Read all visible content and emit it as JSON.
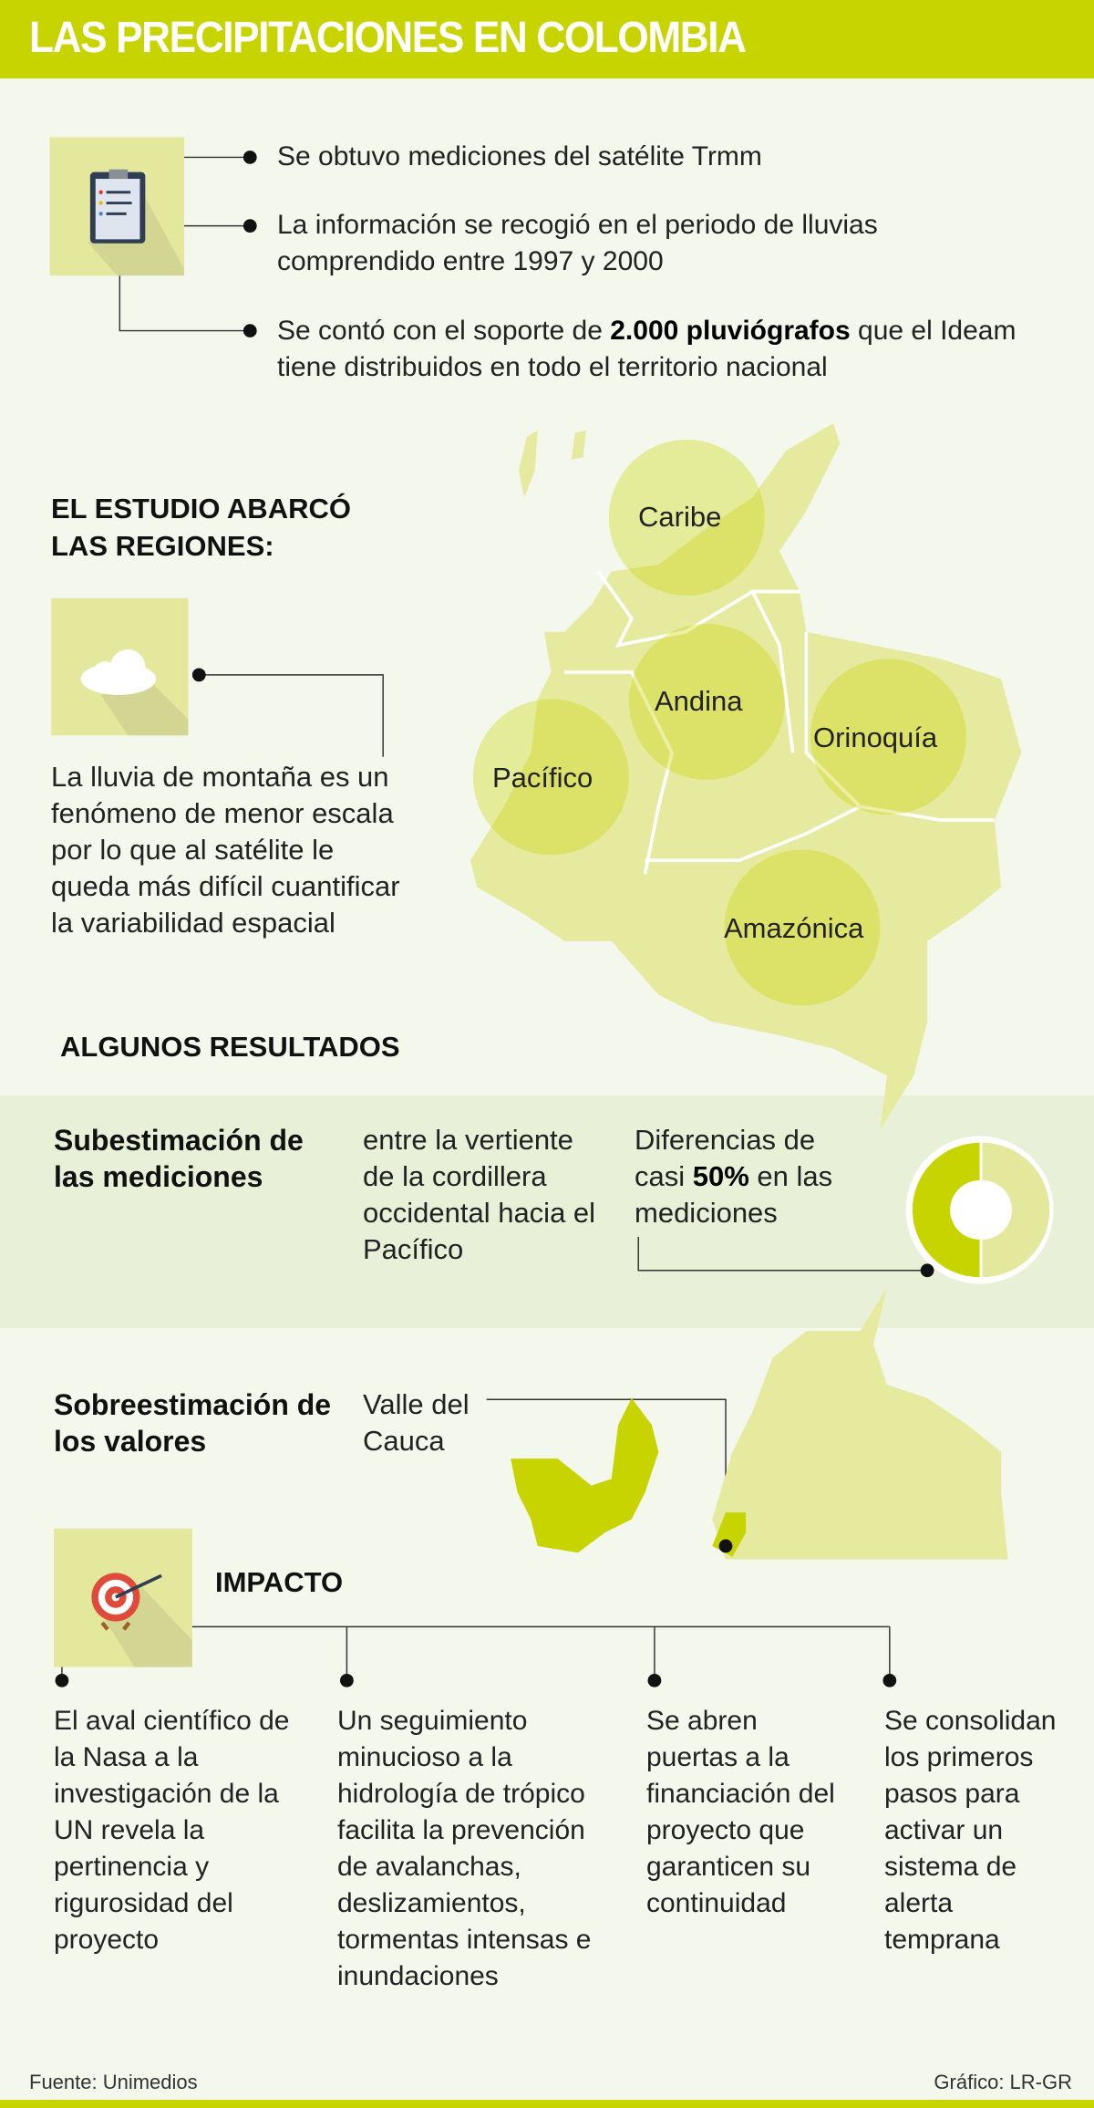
{
  "header": {
    "title": "LAS PRECIPITACIONES EN COLOMBIA"
  },
  "intro": {
    "items": [
      {
        "text": "Se obtuvo mediciones del satélite Trmm"
      },
      {
        "text": "La información se recogió en el periodo de lluvias comprendido entre 1997 y 2000"
      },
      {
        "pre": "Se contó con el soporte de ",
        "bold": "2.000 pluviógrafos",
        "post": " que el Ideam tiene distribuidos en todo el territorio nacional"
      }
    ],
    "icon": "clipboard-icon"
  },
  "study": {
    "heading_line1": "EL ESTUDIO ABARCÓ",
    "heading_line2": "LAS REGIONES:",
    "icon": "cloud-icon",
    "note": "La lluvia de montaña es un fenómeno de menor escala por lo que al satélite le queda más difícil cuantificar la variabilidad espacial",
    "regions": [
      "Caribe",
      "Andina",
      "Pacífico",
      "Orinoquía",
      "Amazónica"
    ]
  },
  "results": {
    "heading": "ALGUNOS RESULTADOS",
    "under": {
      "label": "Subestimación de las mediciones",
      "detail": "entre la vertiente de la cordillera occidental hacia el Pacífico",
      "diff_pre": "Diferencias de casi ",
      "diff_bold": "50%",
      "diff_post": " en las mediciones",
      "donut_percent": 50
    },
    "over": {
      "label": "Sobreestimación de los valores",
      "detail": "Valle del Cauca"
    },
    "colors": {
      "accent": "#c8d400",
      "light": "#e3e89d",
      "map": "#e6ea9f"
    }
  },
  "impact": {
    "heading": "IMPACTO",
    "icon": "target-icon",
    "items": [
      "El aval científico de la Nasa a la investigación de la UN revela la pertinencia y rigurosidad del proyecto",
      "Un seguimiento minucioso a la hidrología de trópico facilita la prevención de avalanchas, deslizamientos, tormentas intensas e inundaciones",
      "Se abren puertas a la financiación del proyecto que garanticen su continuidad",
      "Se consolidan los primeros pasos para activar un sistema de alerta temprana"
    ]
  },
  "footer": {
    "source": "Fuente: Unimedios",
    "credit": "Gráfico: LR-GR"
  }
}
